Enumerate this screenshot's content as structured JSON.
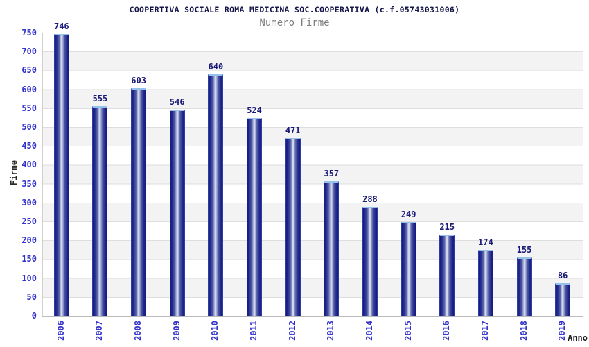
{
  "chart_data": {
    "type": "bar",
    "title": "COOPERTIVA SOCIALE ROMA MEDICINA SOC.COOPERATIVA (c.f.05743031006)",
    "subtitle": "Numero Firme",
    "xlabel": "Anno",
    "ylabel": "Firme",
    "categories": [
      "2006",
      "2007",
      "2008",
      "2009",
      "2010",
      "2011",
      "2012",
      "2013",
      "2014",
      "2015",
      "2016",
      "2017",
      "2018",
      "2019"
    ],
    "values": [
      746,
      555,
      603,
      546,
      640,
      524,
      471,
      357,
      288,
      249,
      215,
      174,
      155,
      86
    ],
    "ylim": [
      0,
      750
    ],
    "ytick_step": 50,
    "grid": true,
    "legend": false,
    "background_bands": true,
    "bar_value_labels_shown": true
  },
  "colors": {
    "bar_dark": "#181880",
    "bar_light_center": "#e0e4f4",
    "bar_top_cap": "#94c2ec",
    "bar_outline": "#2b3ba8",
    "axis_tick_labels": "#3333cc",
    "value_labels": "#191977",
    "title_text": "#14144a",
    "subtitle_text": "#7d7d7d",
    "band_gray": "#f3f3f3",
    "gridline": "#dedede",
    "plot_border": "#d0d0d0"
  }
}
